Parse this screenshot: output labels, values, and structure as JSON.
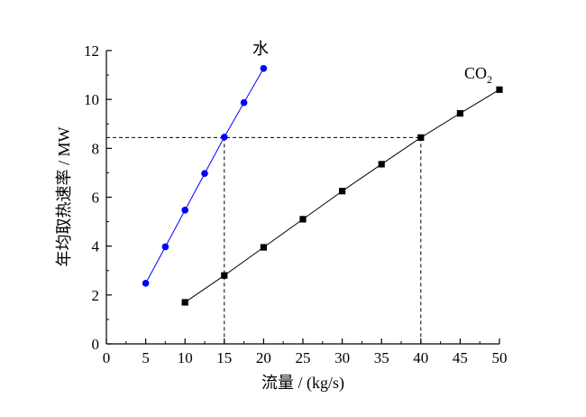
{
  "chart_data": {
    "type": "scatter",
    "xlabel": "流量 / (kg/s)",
    "ylabel": "年均取热速率 / MW",
    "xlim": [
      0,
      50
    ],
    "ylim": [
      0,
      12
    ],
    "xticks": [
      "0",
      "5",
      "10",
      "15",
      "20",
      "25",
      "30",
      "35",
      "40",
      "45",
      "50"
    ],
    "yticks": [
      "0",
      "2",
      "4",
      "6",
      "8",
      "10",
      "12"
    ],
    "grid": false,
    "series": [
      {
        "name": "水",
        "marker": "circle",
        "color": "#0000ff",
        "x": [
          5,
          7.5,
          10,
          12.5,
          15,
          17.5,
          20
        ],
        "y": [
          2.48,
          3.97,
          5.47,
          6.97,
          8.46,
          9.87,
          11.27
        ]
      },
      {
        "name": "CO",
        "name_subscript": "2",
        "marker": "square",
        "color": "#000000",
        "x": [
          10,
          15,
          20,
          25,
          30,
          35,
          40,
          45,
          50
        ],
        "y": [
          1.7,
          2.8,
          3.95,
          5.1,
          6.25,
          7.35,
          8.44,
          9.43,
          10.4
        ]
      }
    ],
    "reference_lines": {
      "y": 8.44,
      "x": [
        15,
        40
      ],
      "style": "dashed"
    }
  }
}
